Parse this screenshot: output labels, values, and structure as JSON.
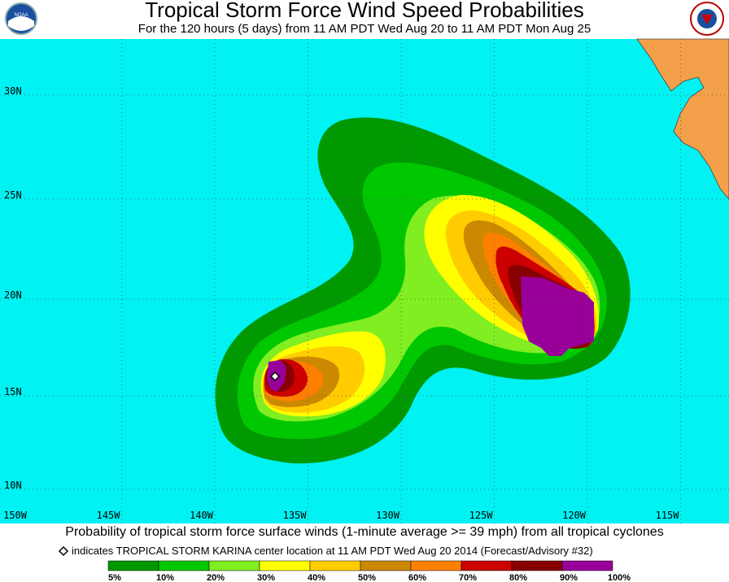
{
  "header": {
    "title": "Tropical Storm Force Wind Speed Probabilities",
    "subtitle": "For the 120 hours (5 days) from 11 AM PDT Wed Aug 20 to 11 AM PDT Mon Aug 25"
  },
  "map": {
    "lat_labels": [
      "30N",
      "25N",
      "20N",
      "15N",
      "10N"
    ],
    "lon_labels": [
      "150W",
      "145W",
      "140W",
      "135W",
      "130W",
      "125W",
      "120W",
      "115W"
    ]
  },
  "footer": {
    "caption": "Probability of tropical storm force surface winds (1-minute average >= 39 mph) from all tropical cyclones",
    "note": "indicates TROPICAL STORM KARINA center location at 11 AM PDT Wed Aug 20 2014 (Forecast/Advisory #32)"
  },
  "legend": {
    "labels": [
      "5%",
      "10%",
      "20%",
      "30%",
      "40%",
      "50%",
      "60%",
      "70%",
      "80%",
      "90%",
      "100%"
    ]
  }
}
